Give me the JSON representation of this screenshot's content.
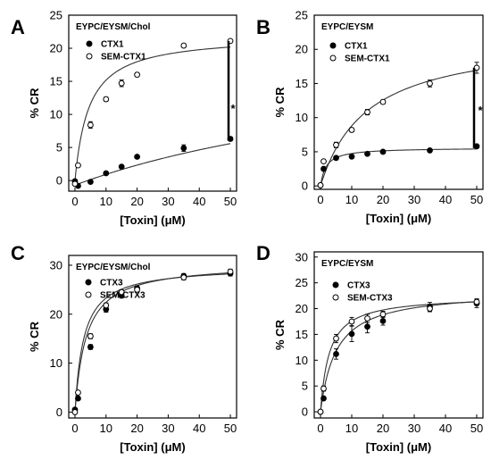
{
  "figure": {
    "axis_titles": {
      "x": "[Toxin] (μM)",
      "y": "% CR"
    },
    "styles": {
      "series": [
        {
          "marker": "filled-circle",
          "color": "#000000"
        },
        {
          "marker": "open-circle",
          "color": "#000000"
        }
      ],
      "fit_color": "#333333"
    }
  },
  "chart_data": [
    {
      "panel": "A",
      "type": "scatter",
      "condition": "EYPC/EYSM/Chol",
      "xlabel": "[Toxin] (μM)",
      "ylabel": "% CR",
      "xlim": [
        -2,
        52
      ],
      "ylim": [
        -1.6,
        25
      ],
      "xticks": [
        0,
        10,
        20,
        30,
        40,
        50
      ],
      "yticks": [
        0,
        5,
        10,
        15,
        20,
        25
      ],
      "significance": "*",
      "series": [
        {
          "name": "CTX1",
          "marker": "filled",
          "x": [
            0,
            1,
            5,
            10,
            15,
            20,
            35,
            50
          ],
          "y": [
            -0.1,
            -0.8,
            -0.2,
            1.1,
            2.1,
            3.6,
            4.9,
            6.3
          ],
          "err": [
            0.2,
            0.2,
            0.2,
            0.2,
            0.2,
            0.2,
            0.5,
            0.3
          ]
        },
        {
          "name": "SEM-CTX1",
          "marker": "open",
          "x": [
            0,
            1,
            5,
            10,
            15,
            20,
            35,
            50
          ],
          "y": [
            -0.5,
            2.3,
            8.4,
            12.3,
            14.7,
            16.0,
            20.4,
            21.1
          ],
          "err": [
            0.2,
            0.2,
            0.5,
            0.3,
            0.5,
            0.3,
            0.2,
            0.2
          ]
        }
      ],
      "fits": [
        {
          "series": "CTX1",
          "model": "hyperbolic",
          "bmax": 22.0,
          "kd": 125,
          "y0": -0.7
        },
        {
          "series": "SEM-CTX1",
          "model": "hyperbolic",
          "bmax": 22.0,
          "kd": 4.5,
          "y0": 0
        }
      ]
    },
    {
      "panel": "B",
      "type": "scatter",
      "condition": "EYPC/EYSM",
      "xlabel": "[Toxin] (μM)",
      "ylabel": "% CR",
      "xlim": [
        -2,
        52
      ],
      "ylim": [
        -0.5,
        25
      ],
      "xticks": [
        0,
        10,
        20,
        30,
        40,
        50
      ],
      "yticks": [
        0,
        5,
        10,
        15,
        20,
        25
      ],
      "significance": "*",
      "series": [
        {
          "name": "CTX1",
          "marker": "filled",
          "x": [
            0,
            1,
            5,
            10,
            15,
            20,
            35,
            50
          ],
          "y": [
            0.1,
            2.5,
            4.1,
            4.3,
            4.7,
            5.0,
            5.2,
            5.8
          ],
          "err": [
            0.2,
            0.2,
            0.2,
            0.2,
            0.2,
            0.2,
            0.2,
            0.2
          ]
        },
        {
          "name": "SEM-CTX1",
          "marker": "open",
          "x": [
            0,
            1,
            5,
            10,
            15,
            20,
            35,
            50
          ],
          "y": [
            0.1,
            3.6,
            6.0,
            8.2,
            10.8,
            12.3,
            15.0,
            17.3
          ],
          "err": [
            0.2,
            0.2,
            0.4,
            0.3,
            0.4,
            0.3,
            0.5,
            0.8
          ]
        }
      ],
      "fits": [
        {
          "series": "CTX1",
          "model": "hyperbolic",
          "bmax": 5.6,
          "kd": 1.8,
          "y0": 0
        },
        {
          "series": "SEM-CTX1",
          "model": "hyperbolic",
          "bmax": 22.0,
          "kd": 15,
          "y0": 0
        }
      ]
    },
    {
      "panel": "C",
      "type": "scatter",
      "condition": "EYPC/EYSM/Chol",
      "xlabel": "[Toxin] (μM)",
      "ylabel": "% CR",
      "xlim": [
        -2,
        52
      ],
      "ylim": [
        -1.2,
        32
      ],
      "xticks": [
        0,
        10,
        20,
        30,
        40,
        50
      ],
      "yticks": [
        0,
        10,
        20,
        30
      ],
      "significance": "",
      "series": [
        {
          "name": "CTX3",
          "marker": "filled",
          "x": [
            0,
            1,
            5,
            10,
            15,
            20,
            35,
            50
          ],
          "y": [
            0.5,
            2.8,
            13.3,
            21.0,
            23.8,
            25.3,
            27.8,
            28.3
          ],
          "err": [
            0.2,
            0.3,
            0.5,
            0.6,
            0.5,
            0.5,
            0.5,
            0.5
          ]
        },
        {
          "name": "SEM-CTX3",
          "marker": "open",
          "x": [
            0,
            1,
            5,
            10,
            15,
            20,
            35,
            50
          ],
          "y": [
            0.0,
            4.0,
            15.5,
            21.8,
            24.5,
            25.0,
            27.5,
            28.7
          ],
          "err": [
            0.3,
            0.3,
            0.5,
            0.5,
            0.5,
            0.5,
            0.5,
            0.5
          ]
        }
      ],
      "fits": [
        {
          "series": "CTX3",
          "model": "hyperbolic",
          "bmax": 30.5,
          "kd": 3.6,
          "y0": 0
        },
        {
          "series": "SEM-CTX3",
          "model": "hyperbolic",
          "bmax": 29.8,
          "kd": 2.8,
          "y0": 0
        }
      ]
    },
    {
      "panel": "D",
      "type": "scatter",
      "condition": "EYPC/EYSM",
      "xlabel": "[Toxin] (μM)",
      "ylabel": "% CR",
      "xlim": [
        -2,
        52
      ],
      "ylim": [
        -1.2,
        31
      ],
      "xticks": [
        0,
        10,
        20,
        30,
        40,
        50
      ],
      "yticks": [
        0,
        5,
        10,
        15,
        20,
        25,
        30
      ],
      "significance": "",
      "series": [
        {
          "name": "CTX3",
          "marker": "filled",
          "x": [
            0,
            1,
            5,
            10,
            15,
            20,
            35,
            50
          ],
          "y": [
            0.0,
            2.6,
            11.2,
            15.1,
            16.5,
            17.6,
            20.4,
            21.0
          ],
          "err": [
            0.2,
            0.3,
            1.0,
            1.5,
            1.2,
            0.8,
            0.8,
            0.8
          ]
        },
        {
          "name": "SEM-CTX3",
          "marker": "open",
          "x": [
            0,
            1,
            5,
            10,
            15,
            20,
            35,
            50
          ],
          "y": [
            0.0,
            4.5,
            14.2,
            17.5,
            18.1,
            18.9,
            20.0,
            21.3
          ],
          "err": [
            0.2,
            0.5,
            0.8,
            0.8,
            0.8,
            0.6,
            0.6,
            0.6
          ]
        }
      ],
      "fits": [
        {
          "series": "CTX3",
          "model": "hyperbolic",
          "bmax": 23.5,
          "kd": 5.0,
          "y0": 0
        },
        {
          "series": "SEM-CTX3",
          "model": "hyperbolic",
          "bmax": 22.5,
          "kd": 2.8,
          "y0": 0
        }
      ]
    }
  ]
}
